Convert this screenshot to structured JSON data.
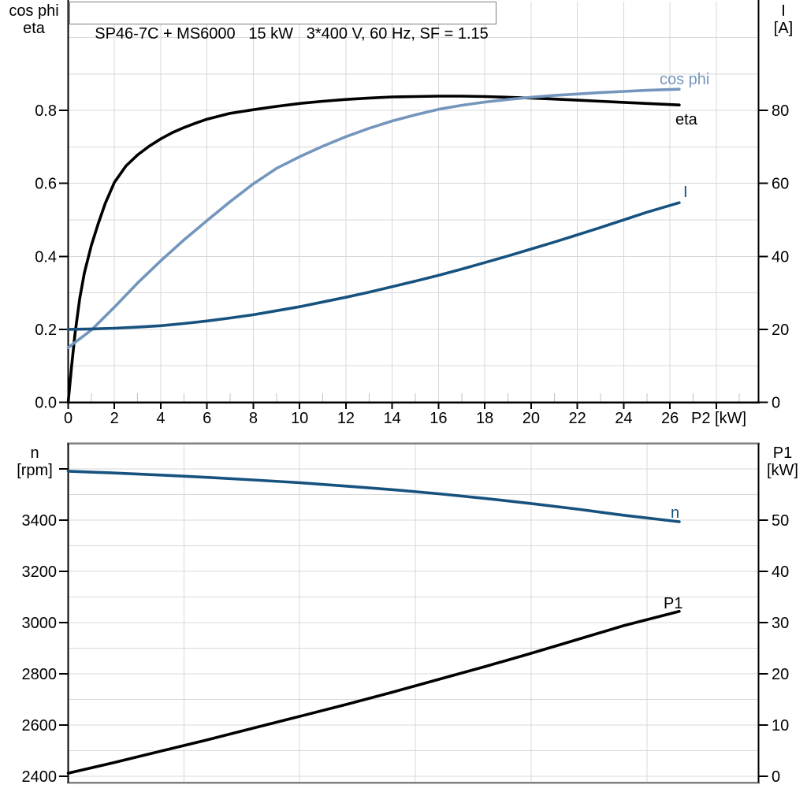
{
  "title": "SP46-7C + MS6000   15 kW   3*400 V, 60 Hz, SF = 1.15",
  "colors": {
    "eta": "#000000",
    "cos_phi": "#7496BC",
    "current": "#17527F",
    "speed": "#17527F",
    "p1": "#000000",
    "grid": "#D8D8D8",
    "minor_tick": "#C0C0C0",
    "frame": "#7F7F7F",
    "axis": "#000000"
  },
  "chart_data": [
    {
      "type": "line",
      "position": "top",
      "grid": "on",
      "legend": "labels at curve ends",
      "xlabel": "P2 [kW]",
      "xlim": [
        0,
        29.8
      ],
      "x_tick_labels": [
        "0",
        "2",
        "4",
        "6",
        "8",
        "10",
        "12",
        "14",
        "16",
        "18",
        "20",
        "22",
        "24",
        "26"
      ],
      "x_tick_values": [
        0,
        2,
        4,
        6,
        8,
        10,
        12,
        14,
        16,
        18,
        20,
        22,
        24,
        26
      ],
      "y_left": {
        "label_lines": [
          "cos phi",
          "eta"
        ],
        "range": [
          0,
          1.1
        ],
        "tick_labels": [
          "0.0",
          "0.2",
          "0.4",
          "0.6",
          "0.8"
        ],
        "tick_values": [
          0.0,
          0.2,
          0.4,
          0.6,
          0.8
        ],
        "grid_step": 0.1
      },
      "y_right": {
        "label_lines": [
          "I",
          "[A]"
        ],
        "range": [
          0,
          110
        ],
        "tick_labels": [
          "0",
          "20",
          "40",
          "60",
          "80"
        ],
        "tick_values": [
          0,
          20,
          40,
          60,
          80
        ],
        "grid_step": 10
      },
      "series": [
        {
          "name": "eta",
          "axis": "left",
          "color_key": "eta",
          "points": [
            [
              0,
              0
            ],
            [
              0.15,
              0.1
            ],
            [
              0.3,
              0.19
            ],
            [
              0.5,
              0.285
            ],
            [
              0.7,
              0.355
            ],
            [
              1,
              0.43
            ],
            [
              1.3,
              0.49
            ],
            [
              1.6,
              0.545
            ],
            [
              2,
              0.603
            ],
            [
              2.5,
              0.648
            ],
            [
              3,
              0.678
            ],
            [
              3.5,
              0.702
            ],
            [
              4,
              0.722
            ],
            [
              4.5,
              0.739
            ],
            [
              5,
              0.753
            ],
            [
              5.5,
              0.765
            ],
            [
              6,
              0.776
            ],
            [
              6.5,
              0.784
            ],
            [
              7,
              0.792
            ],
            [
              7.5,
              0.797
            ],
            [
              8,
              0.802
            ],
            [
              9,
              0.811
            ],
            [
              10,
              0.819
            ],
            [
              11,
              0.825
            ],
            [
              12,
              0.83
            ],
            [
              13,
              0.834
            ],
            [
              14,
              0.837
            ],
            [
              15,
              0.838
            ],
            [
              16,
              0.839
            ],
            [
              17,
              0.839
            ],
            [
              18,
              0.838
            ],
            [
              19,
              0.836
            ],
            [
              20,
              0.834
            ],
            [
              21,
              0.831
            ],
            [
              22,
              0.828
            ],
            [
              23,
              0.825
            ],
            [
              24,
              0.822
            ],
            [
              25,
              0.819
            ],
            [
              26.4,
              0.815
            ]
          ]
        },
        {
          "name": "cos phi",
          "axis": "left",
          "color_key": "cos_phi",
          "points": [
            [
              0,
              0.15
            ],
            [
              1,
              0.198
            ],
            [
              2,
              0.261
            ],
            [
              3,
              0.327
            ],
            [
              4,
              0.388
            ],
            [
              5,
              0.445
            ],
            [
              6,
              0.498
            ],
            [
              7,
              0.55
            ],
            [
              8,
              0.599
            ],
            [
              9,
              0.641
            ],
            [
              10,
              0.673
            ],
            [
              11,
              0.702
            ],
            [
              12,
              0.728
            ],
            [
              13,
              0.751
            ],
            [
              14,
              0.771
            ],
            [
              15,
              0.788
            ],
            [
              16,
              0.803
            ],
            [
              17,
              0.814
            ],
            [
              18,
              0.823
            ],
            [
              19,
              0.83
            ],
            [
              20,
              0.836
            ],
            [
              21,
              0.841
            ],
            [
              22,
              0.845
            ],
            [
              23,
              0.849
            ],
            [
              24,
              0.852
            ],
            [
              25,
              0.855
            ],
            [
              26.4,
              0.858
            ]
          ]
        },
        {
          "name": "I",
          "axis": "right",
          "color_key": "current",
          "points": [
            [
              0,
              20
            ],
            [
              1,
              20.1
            ],
            [
              2,
              20.3
            ],
            [
              3,
              20.6
            ],
            [
              4,
              21.0
            ],
            [
              5,
              21.6
            ],
            [
              6,
              22.3
            ],
            [
              7,
              23.1
            ],
            [
              8,
              24.0
            ],
            [
              9,
              25.1
            ],
            [
              10,
              26.2
            ],
            [
              11,
              27.5
            ],
            [
              12,
              28.8
            ],
            [
              13,
              30.2
            ],
            [
              14,
              31.7
            ],
            [
              15,
              33.2
            ],
            [
              16,
              34.8
            ],
            [
              17,
              36.5
            ],
            [
              18,
              38.3
            ],
            [
              19,
              40.1
            ],
            [
              20,
              42.0
            ],
            [
              21,
              43.9
            ],
            [
              22,
              45.9
            ],
            [
              23,
              47.9
            ],
            [
              24,
              50.0
            ],
            [
              25,
              52.1
            ],
            [
              26.4,
              54.7
            ]
          ]
        }
      ]
    },
    {
      "type": "line",
      "position": "bottom",
      "grid": "on",
      "legend": "labels at curve ends",
      "xlabel": "",
      "xlim": [
        0,
        29.8
      ],
      "x_tick_labels": [],
      "x_tick_values": [],
      "x_grid_step": 5,
      "y_left": {
        "label_lines": [
          "n",
          "[rpm]"
        ],
        "range": [
          2375,
          3700
        ],
        "tick_labels": [
          "3400",
          "3200",
          "3000",
          "2800",
          "2600",
          "2400"
        ],
        "tick_values": [
          3400,
          3200,
          3000,
          2800,
          2600,
          2400
        ],
        "unlabeled_tick_values": [
          3600
        ],
        "grid_step": 100
      },
      "y_right": {
        "label_lines": [
          "P1",
          "[kW]"
        ],
        "range": [
          -1.2,
          65
        ],
        "tick_labels": [
          "50",
          "40",
          "30",
          "20",
          "10",
          "0"
        ],
        "tick_values": [
          50,
          40,
          30,
          20,
          10,
          0
        ],
        "unlabeled_tick_values": [
          60
        ],
        "grid_step": 5
      },
      "series": [
        {
          "name": "n",
          "axis": "left",
          "color_key": "speed",
          "points": [
            [
              0,
              3591
            ],
            [
              2,
              3584
            ],
            [
              4,
              3576
            ],
            [
              6,
              3567
            ],
            [
              8,
              3557
            ],
            [
              10,
              3546
            ],
            [
              12,
              3533
            ],
            [
              14,
              3519
            ],
            [
              16,
              3503
            ],
            [
              18,
              3485
            ],
            [
              20,
              3465
            ],
            [
              22,
              3443
            ],
            [
              24,
              3419
            ],
            [
              26.4,
              3394
            ]
          ]
        },
        {
          "name": "P1",
          "axis": "right",
          "color_key": "p1",
          "points": [
            [
              0,
              0.6
            ],
            [
              2,
              2.7
            ],
            [
              4,
              4.9
            ],
            [
              6,
              7.1
            ],
            [
              8,
              9.4
            ],
            [
              10,
              11.7
            ],
            [
              12,
              14.0
            ],
            [
              14,
              16.4
            ],
            [
              16,
              18.9
            ],
            [
              18,
              21.4
            ],
            [
              20,
              24.0
            ],
            [
              22,
              26.7
            ],
            [
              24,
              29.4
            ],
            [
              26.4,
              32.2
            ]
          ]
        }
      ]
    }
  ]
}
